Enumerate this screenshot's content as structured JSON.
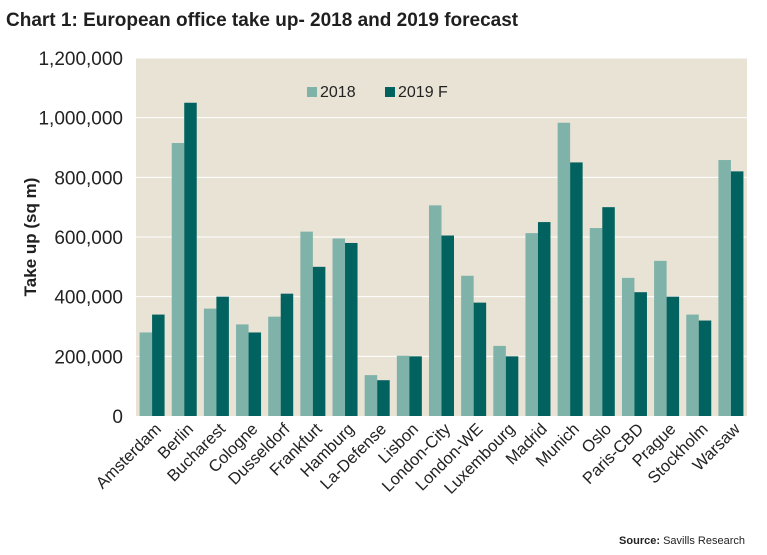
{
  "chart_data": {
    "type": "bar",
    "title": "Chart 1: European office take up- 2018 and 2019 forecast",
    "xlabel": "",
    "ylabel": "Take up (sq m)",
    "ylim": [
      0,
      1200000
    ],
    "yticks": [
      0,
      200000,
      400000,
      600000,
      800000,
      1000000,
      1200000
    ],
    "ytick_labels": [
      "0",
      "200,000",
      "400,000",
      "600,000",
      "800,000",
      "1,000,000",
      "1,200,000"
    ],
    "grid": true,
    "legend_position": "top-center",
    "categories": [
      "Amsterdam",
      "Berlin",
      "Bucharest",
      "Cologne",
      "Dusseldorf",
      "Frankfurt",
      "Hamburg",
      "La-Defense",
      "Lisbon",
      "London-City",
      "London-WE",
      "Luxembourg",
      "Madrid",
      "Munich",
      "Oslo",
      "Paris-CBD",
      "Prague",
      "Stockholm",
      "Warsaw"
    ],
    "series": [
      {
        "name": "2018",
        "color": "#7fb2a8",
        "values": [
          280000,
          915000,
          360000,
          307000,
          333000,
          618000,
          595000,
          137000,
          202000,
          706000,
          470000,
          235000,
          613000,
          983000,
          630000,
          463000,
          520000,
          340000,
          858000
        ]
      },
      {
        "name": "2019 F",
        "color": "#02625f",
        "values": [
          340000,
          1050000,
          400000,
          280000,
          410000,
          500000,
          580000,
          120000,
          200000,
          605000,
          380000,
          200000,
          650000,
          850000,
          700000,
          415000,
          400000,
          320000,
          820000
        ]
      }
    ],
    "plot_background": "#e9e3d6",
    "gridline_color": "#ffffff"
  },
  "footer": {
    "source_label": "Source:",
    "source_text": "Savills Research"
  }
}
